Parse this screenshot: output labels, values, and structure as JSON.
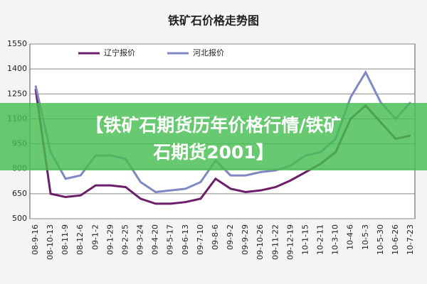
{
  "chart_data": {
    "type": "line",
    "title": "铁矿石价格走势图",
    "categories": [
      "08-9-16",
      "08-10-13",
      "08-11-9",
      "08-12-6",
      "09-1-2",
      "09-1-29",
      "09-2-25",
      "09-3-24",
      "09-4-20",
      "09-5-17",
      "09-6-13",
      "09-7-10",
      "09-8-6",
      "09-9-2",
      "09-9-29",
      "09-10-26",
      "09-11-22",
      "09-12-19",
      "10-1-15",
      "10-2-11",
      "10-3-10",
      "10-4-6",
      "10-5-3",
      "10-5-30",
      "10-6-26",
      "10-7-23"
    ],
    "series": [
      {
        "name": "辽宁报价",
        "color": "#6b1f6b",
        "values": [
          1280,
          650,
          630,
          640,
          700,
          700,
          690,
          620,
          590,
          590,
          600,
          620,
          740,
          680,
          660,
          670,
          690,
          730,
          780,
          830,
          900,
          1100,
          1180,
          1080,
          980,
          1000
        ]
      },
      {
        "name": "河北报价",
        "color": "#8088c4",
        "values": [
          1300,
          900,
          740,
          760,
          880,
          880,
          860,
          720,
          660,
          670,
          680,
          720,
          850,
          760,
          760,
          780,
          790,
          820,
          880,
          900,
          980,
          1230,
          1380,
          1200,
          1100,
          1200
        ]
      }
    ],
    "ylim": [
      500,
      1550
    ],
    "yticks": [
      500,
      650,
      800,
      950,
      1100,
      1250,
      1400,
      1550
    ],
    "grid": true,
    "legend": "top",
    "banner": [
      "【铁矿石期货历年价格行情/铁矿",
      "石期货2001】"
    ]
  }
}
